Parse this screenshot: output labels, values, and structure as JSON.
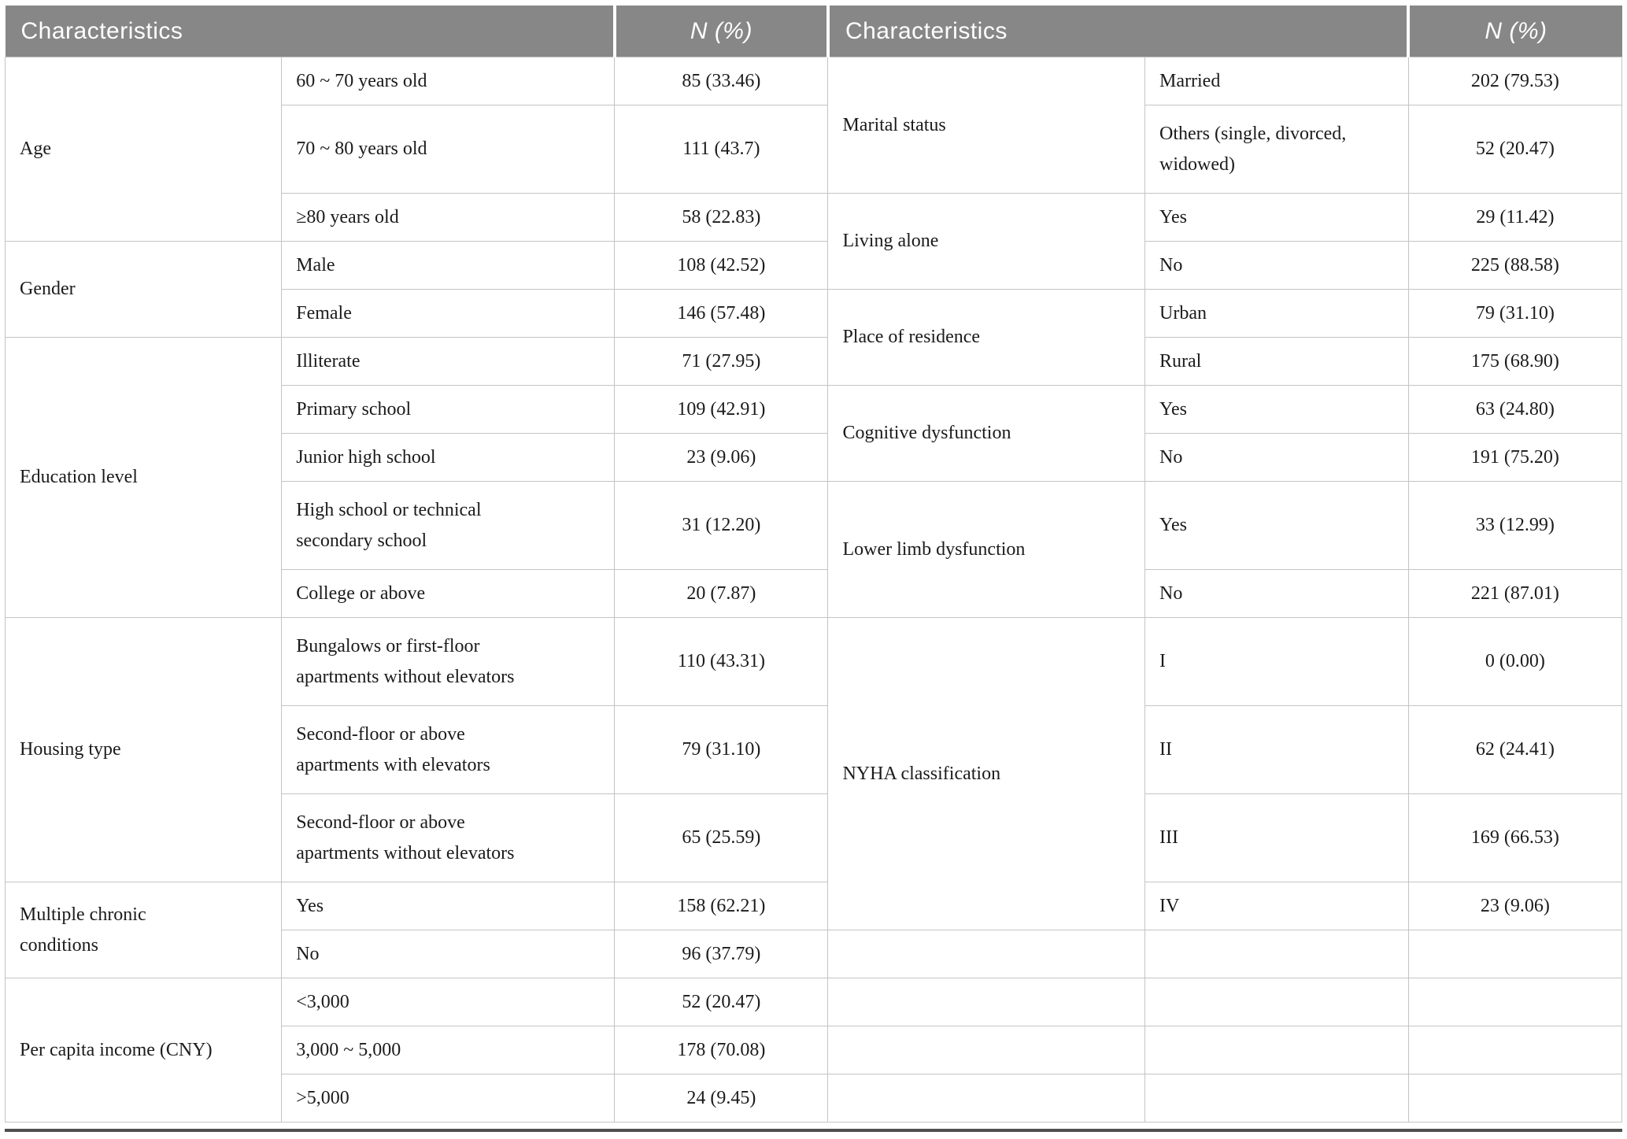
{
  "header": {
    "characteristics_left": "Characteristics",
    "n_left": "N (%)",
    "characteristics_right": "Characteristics",
    "n_right": "N (%)"
  },
  "left": {
    "groups": [
      {
        "category": "Age",
        "items": [
          {
            "label": "60 ~ 70 years old",
            "value": "85 (33.46)"
          },
          {
            "label": "70 ~ 80 years old",
            "value": "111 (43.7)"
          },
          {
            "label": "≥80 years old",
            "value": "58 (22.83)"
          }
        ]
      },
      {
        "category": "Gender",
        "items": [
          {
            "label": "Male",
            "value": "108 (42.52)"
          },
          {
            "label": "Female",
            "value": "146 (57.48)"
          }
        ]
      },
      {
        "category": "Education level",
        "items": [
          {
            "label": "Illiterate",
            "value": "71 (27.95)"
          },
          {
            "label": "Primary school",
            "value": "109 (42.91)"
          },
          {
            "label": "Junior high school",
            "value": "23 (9.06)"
          },
          {
            "label": "High school or technical\nsecondary school",
            "value": "31 (12.20)"
          },
          {
            "label": "College or above",
            "value": "20 (7.87)"
          }
        ]
      },
      {
        "category": "Housing type",
        "items": [
          {
            "label": "Bungalows or first-floor\napartments without elevators",
            "value": "110 (43.31)"
          },
          {
            "label": "Second-floor or above\napartments with elevators",
            "value": "79 (31.10)"
          },
          {
            "label": "Second-floor or above\napartments without elevators",
            "value": "65 (25.59)"
          }
        ]
      },
      {
        "category": "Multiple chronic\nconditions",
        "items": [
          {
            "label": "Yes",
            "value": "158 (62.21)"
          },
          {
            "label": "No",
            "value": "96 (37.79)"
          }
        ]
      },
      {
        "category": "Per capita income (CNY)",
        "items": [
          {
            "label": "<3,000",
            "value": "52 (20.47)"
          },
          {
            "label": "3,000 ~ 5,000",
            "value": "178 (70.08)"
          },
          {
            "label": ">5,000",
            "value": "24 (9.45)"
          }
        ]
      }
    ]
  },
  "right": {
    "groups": [
      {
        "category": "Marital status",
        "items": [
          {
            "label": "Married",
            "value": "202 (79.53)"
          },
          {
            "label": "Others (single, divorced,\nwidowed)",
            "value": "52 (20.47)"
          }
        ]
      },
      {
        "category": "Living alone",
        "items": [
          {
            "label": "Yes",
            "value": "29 (11.42)"
          },
          {
            "label": "No",
            "value": "225 (88.58)"
          }
        ]
      },
      {
        "category": "Place of residence",
        "items": [
          {
            "label": "Urban",
            "value": "79 (31.10)"
          },
          {
            "label": "Rural",
            "value": "175 (68.90)"
          }
        ]
      },
      {
        "category": "Cognitive dysfunction",
        "items": [
          {
            "label": "Yes",
            "value": "63 (24.80)"
          },
          {
            "label": "No",
            "value": "191 (75.20)"
          }
        ]
      },
      {
        "category": "Lower limb dysfunction",
        "items": [
          {
            "label": "Yes",
            "value": "33 (12.99)"
          },
          {
            "label": "No",
            "value": "221 (87.01)"
          }
        ]
      },
      {
        "category": "NYHA classification",
        "items": [
          {
            "label": "I",
            "value": "0 (0.00)"
          },
          {
            "label": "II",
            "value": "62 (24.41)"
          },
          {
            "label": "III",
            "value": "169 (66.53)"
          },
          {
            "label": "IV",
            "value": "23 (9.06)"
          }
        ]
      }
    ]
  },
  "colors": {
    "header_bg": "#878787",
    "header_text": "#ffffff",
    "grid_line": "#c4c4c4",
    "bottom_rule": "#4f4f4f",
    "body_text": "#1b1b1b"
  }
}
